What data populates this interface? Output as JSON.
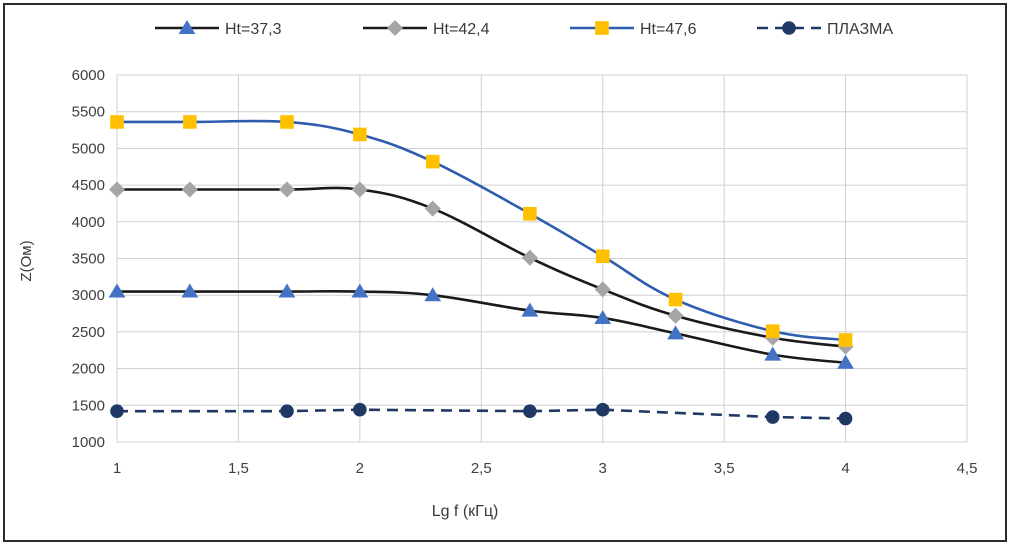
{
  "chart_data": {
    "type": "line",
    "title": "",
    "xlabel": "Lg f (кГц)",
    "ylabel": "Z(Ом)",
    "xlim": [
      1,
      4.5
    ],
    "ylim": [
      1000,
      6000
    ],
    "xticks": [
      1,
      1.5,
      2,
      2.5,
      3,
      3.5,
      4,
      4.5
    ],
    "xtick_labels": [
      "1",
      "1,5",
      "2",
      "2,5",
      "3",
      "3,5",
      "4",
      "4,5"
    ],
    "yticks": [
      1000,
      1500,
      2000,
      2500,
      3000,
      3500,
      4000,
      4500,
      5000,
      5500,
      6000
    ],
    "ytick_labels": [
      "1000",
      "1500",
      "2000",
      "2500",
      "3000",
      "3500",
      "4000",
      "4500",
      "5000",
      "5500",
      "6000"
    ],
    "grid": true,
    "legend_position": "top",
    "x": [
      1,
      1.3,
      1.7,
      2,
      2.3,
      2.7,
      3,
      3.3,
      3.7,
      4
    ],
    "series": [
      {
        "name": "Ht=37,3",
        "line_color": "#1a1a1a",
        "marker": "triangle",
        "marker_color": "#4472c4",
        "dashed": false,
        "values": [
          3050,
          3050,
          3050,
          3050,
          3000,
          2790,
          2690,
          2480,
          2190,
          2080
        ]
      },
      {
        "name": "Ht=42,4",
        "line_color": "#1a1a1a",
        "marker": "diamond",
        "marker_color": "#a5a5a5",
        "dashed": false,
        "values": [
          4440,
          4440,
          4440,
          4440,
          4180,
          3510,
          3080,
          2720,
          2420,
          2300
        ]
      },
      {
        "name": "Ht=47,6",
        "line_color": "#2e5db0",
        "marker": "square",
        "marker_color": "#ffc000",
        "dashed": false,
        "values": [
          5360,
          5360,
          5360,
          5190,
          4820,
          4110,
          3530,
          2940,
          2510,
          2390
        ]
      },
      {
        "name": "ПЛАЗМА",
        "line_color": "#1f3864",
        "marker": "circle",
        "marker_color": "#1f3864",
        "dashed": true,
        "values": [
          1420,
          null,
          1420,
          1440,
          null,
          1420,
          1440,
          null,
          1340,
          1320
        ]
      }
    ]
  }
}
